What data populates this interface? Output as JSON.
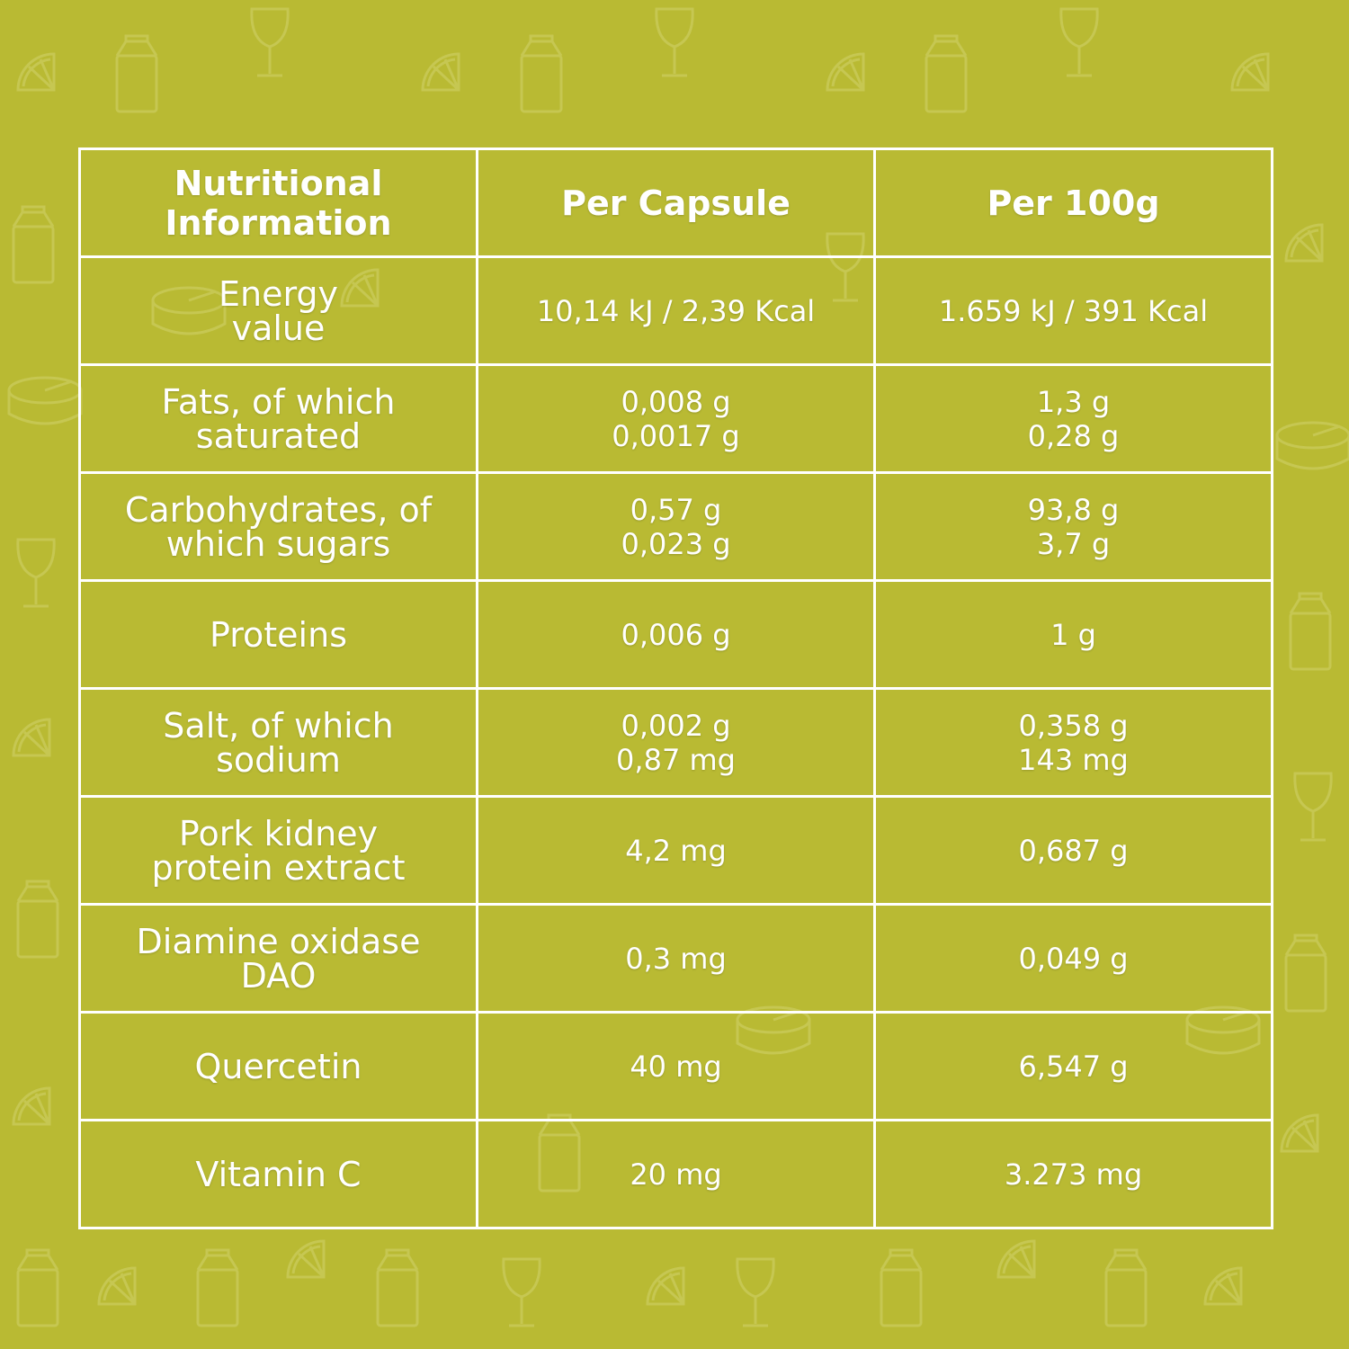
{
  "colors": {
    "background": "#b9ba33",
    "text": "#ffffff",
    "grid": "#ffffff",
    "pattern": "#c6c752"
  },
  "background_pattern_icons": [
    "lemon-slice-icon",
    "milk-carton-icon",
    "wine-glass-icon",
    "cheese-icon"
  ],
  "table": {
    "headers": [
      "Nutritional Information",
      "Per Capsule",
      "Per 100g"
    ],
    "header_lines": [
      [
        "Nutritional",
        "Information"
      ],
      [
        "Per Capsule"
      ],
      [
        "Per 100g"
      ]
    ],
    "rows": [
      {
        "label": [
          "Energy",
          "value"
        ],
        "per_capsule": [
          "10,14 kJ / 2,39 Kcal"
        ],
        "per_100g": [
          "1.659 kJ / 391 Kcal"
        ]
      },
      {
        "label": [
          "Fats, of which",
          "saturated"
        ],
        "per_capsule": [
          "0,008 g",
          "0,0017 g"
        ],
        "per_100g": [
          "1,3 g",
          "0,28 g"
        ]
      },
      {
        "label": [
          "Carbohydrates, of",
          "which sugars"
        ],
        "per_capsule": [
          "0,57 g",
          "0,023 g"
        ],
        "per_100g": [
          "93,8 g",
          "3,7 g"
        ]
      },
      {
        "label": [
          "Proteins"
        ],
        "per_capsule": [
          "0,006 g"
        ],
        "per_100g": [
          "1 g"
        ]
      },
      {
        "label": [
          "Salt, of which",
          "sodium"
        ],
        "per_capsule": [
          "0,002 g",
          "0,87 mg"
        ],
        "per_100g": [
          "0,358 g",
          "143 mg"
        ]
      },
      {
        "label": [
          "Pork kidney",
          "protein extract"
        ],
        "per_capsule": [
          "4,2 mg"
        ],
        "per_100g": [
          "0,687 g"
        ]
      },
      {
        "label": [
          "Diamine oxidase",
          "DAO"
        ],
        "per_capsule": [
          "0,3 mg"
        ],
        "per_100g": [
          "0,049 g"
        ]
      },
      {
        "label": [
          "Quercetin"
        ],
        "per_capsule": [
          "40 mg"
        ],
        "per_100g": [
          "6,547 g"
        ]
      },
      {
        "label": [
          "Vitamin C"
        ],
        "per_capsule": [
          "20 mg"
        ],
        "per_100g": [
          "3.273 mg"
        ]
      }
    ]
  }
}
